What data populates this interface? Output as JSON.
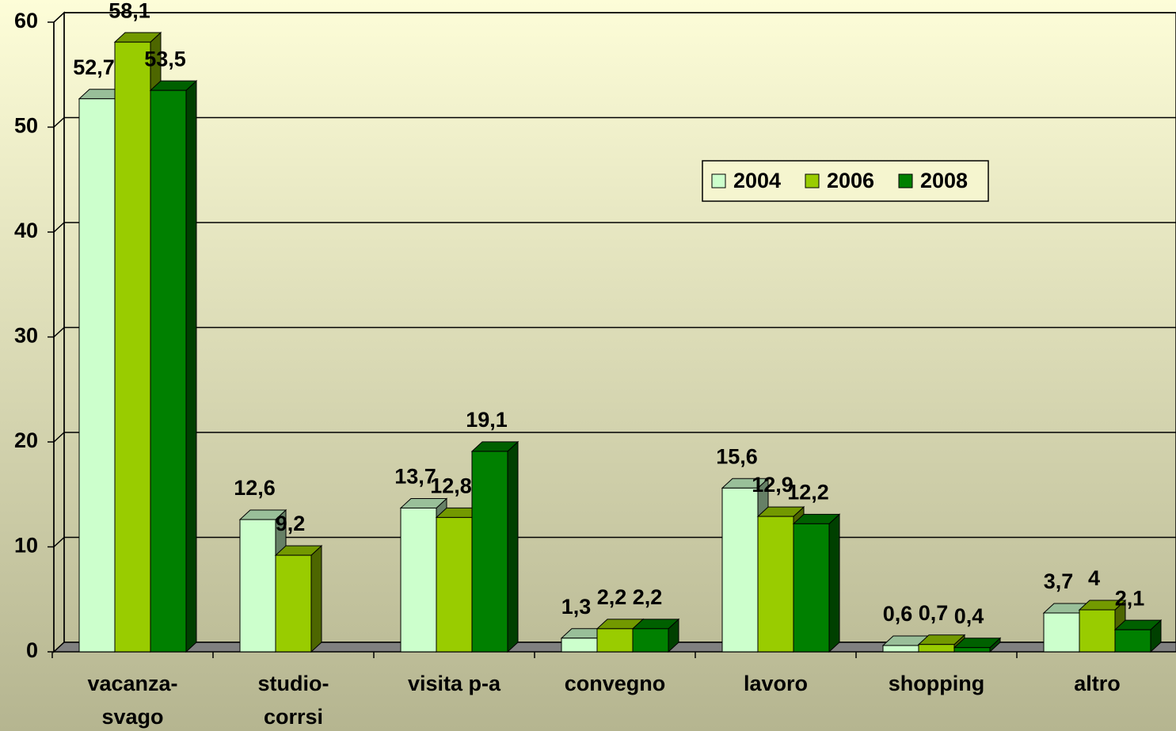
{
  "chart_data": {
    "type": "bar3d",
    "categories": [
      "vacanza-\nsvago",
      "studio-\ncorrsi",
      "visita p-a",
      "convegno",
      "lavoro",
      "shopping",
      "altro"
    ],
    "series": [
      {
        "name": "2004",
        "color": "#ccffcc",
        "values": [
          52.7,
          12.6,
          13.7,
          1.3,
          15.6,
          0.6,
          3.7
        ],
        "value_labels": [
          "52,7",
          "12,6",
          "13,7",
          "1,3",
          "15,6",
          "0,6",
          "3,7"
        ]
      },
      {
        "name": "2006",
        "color": "#99cc00",
        "values": [
          58.1,
          9.2,
          12.8,
          2.2,
          12.9,
          0.7,
          4
        ],
        "value_labels": [
          "58,1",
          "9,2",
          "12,8",
          "2,2",
          "12,9",
          "0,7",
          "4"
        ]
      },
      {
        "name": "2008",
        "color": "#008000",
        "values": [
          53.5,
          null,
          19.1,
          2.2,
          12.2,
          0.4,
          2.1
        ],
        "value_labels": [
          "53,5",
          null,
          "19,1",
          "2,2",
          "12,2",
          "0,4",
          "2,1"
        ]
      }
    ],
    "ylim": [
      0,
      60
    ],
    "yticks": [
      0,
      10,
      20,
      30,
      40,
      50,
      60
    ],
    "grid": true,
    "legend": "upper right"
  }
}
